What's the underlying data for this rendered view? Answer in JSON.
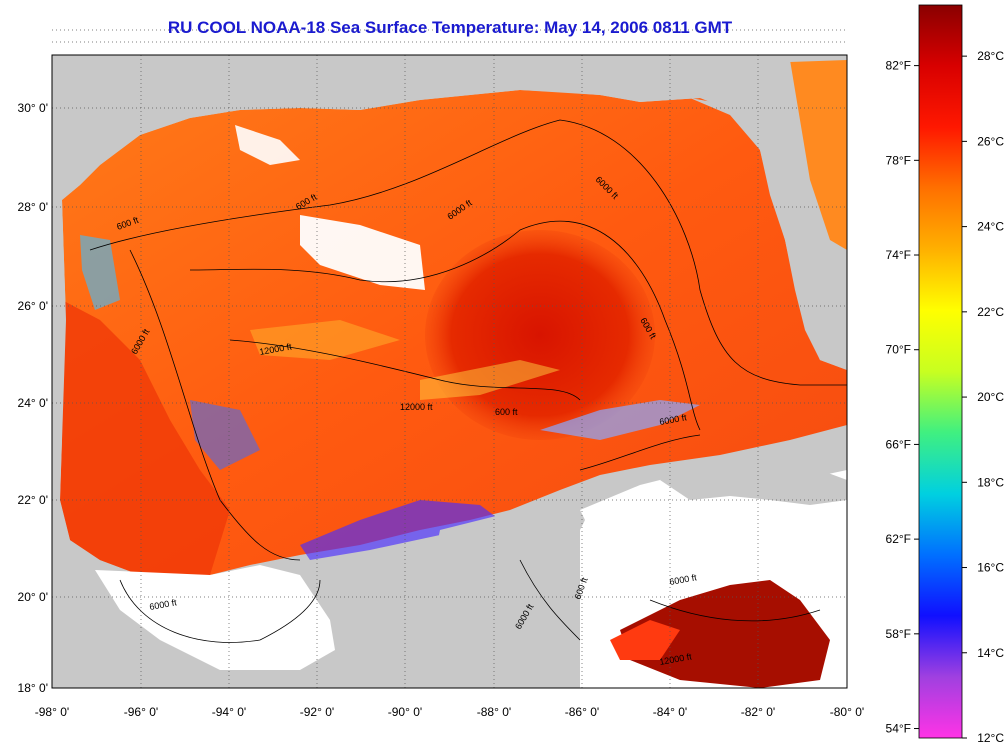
{
  "title": "RU COOL  NOAA-18  Sea Surface Temperature:  May 14, 2006 0811 GMT",
  "map": {
    "lon_range": [
      -98,
      -80
    ],
    "lat_range": [
      18,
      31
    ],
    "lat_ticks": [
      "30° 0'",
      "28° 0'",
      "26° 0'",
      "24° 0'",
      "22° 0'",
      "20° 0'",
      "18° 0'"
    ],
    "lon_ticks": [
      "-98° 0'",
      "-96° 0'",
      "-94° 0'",
      "-92° 0'",
      "-90° 0'",
      "-88° 0'",
      "-86° 0'",
      "-84° 0'",
      "-82° 0'",
      "-80° 0'"
    ],
    "contour_labels": [
      "600 ft",
      "6000 ft",
      "12000 ft",
      "600 ft",
      "6000 ft",
      "12000 ft",
      "600 ft",
      "6000 ft",
      "600 ft",
      "6000 ft",
      "600 ft",
      "6000 ft",
      "12000 ft",
      "6000 ft",
      "6000 ft"
    ],
    "land_color": "#c8c8c8",
    "no_data_color": "#ffffff"
  },
  "colorbar": {
    "celsius_labels": [
      "28°C",
      "26°C",
      "24°C",
      "22°C",
      "20°C",
      "18°C",
      "16°C",
      "14°C",
      "12°C"
    ],
    "fahrenheit_labels": [
      "82°F",
      "78°F",
      "74°F",
      "70°F",
      "66°F",
      "62°F",
      "58°F",
      "54°F"
    ],
    "range_c": [
      12,
      29.2
    ],
    "stops": [
      "#ff33e6",
      "#a040e0",
      "#1010ff",
      "#0070ff",
      "#00d0e0",
      "#40f080",
      "#c8ff20",
      "#ffff00",
      "#ffb000",
      "#ff7000",
      "#ff1800",
      "#d80000",
      "#8a0000"
    ]
  }
}
